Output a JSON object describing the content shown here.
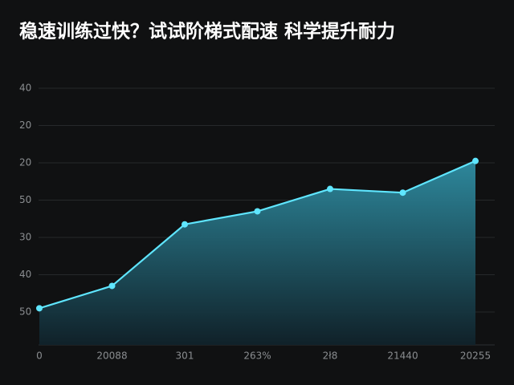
{
  "chart_data": {
    "type": "area",
    "title": "稳速训练过快？试试阶梯式配速  科学提升耐力",
    "categories": [
      "0",
      "20088",
      "301",
      "263%",
      "2ł8",
      "21440",
      "20255"
    ],
    "values": [
      1.1,
      1.7,
      3.35,
      3.7,
      4.3,
      4.2,
      5.05
    ],
    "color": "#5fe6ff",
    "ylim": [
      0,
      7
    ],
    "yticks": [
      {
        "value": 1,
        "label": "50"
      },
      {
        "value": 2,
        "label": "40"
      },
      {
        "value": 3,
        "label": "30"
      },
      {
        "value": 4,
        "label": "50"
      },
      {
        "value": 5,
        "label": "20"
      },
      {
        "value": 6,
        "label": "20"
      },
      {
        "value": 7,
        "label": "40"
      }
    ],
    "grid": true
  }
}
